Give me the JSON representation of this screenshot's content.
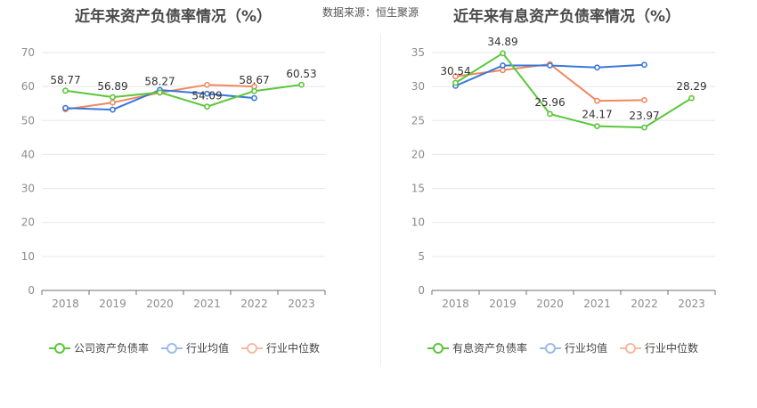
{
  "header": {
    "source_text": "数据来源：恒生聚源"
  },
  "chart_data": [
    {
      "type": "line",
      "title": "近年来资产负债率情况（%）",
      "categories": [
        "2018",
        "2019",
        "2020",
        "2021",
        "2022",
        "2023"
      ],
      "ylim": [
        0,
        70
      ],
      "yticks": [
        0,
        10,
        20,
        30,
        40,
        50,
        60,
        70
      ],
      "grid": true,
      "legend_position": "bottom",
      "series": [
        {
          "name": "公司资产负债率",
          "color": "#5ac73a",
          "values": [
            58.77,
            56.89,
            58.27,
            54.09,
            58.67,
            60.53
          ],
          "labels": [
            "58.77",
            "56.89",
            "58.27",
            "54.09",
            "58.67",
            "60.53"
          ]
        },
        {
          "name": "行业均值",
          "color": "#3a78d8",
          "values": [
            53.7,
            53.2,
            59.0,
            57.9,
            56.6,
            null
          ]
        },
        {
          "name": "行业中位数",
          "color": "#f08860",
          "values": [
            53.3,
            55.3,
            58.2,
            60.5,
            60.0,
            null
          ]
        }
      ]
    },
    {
      "type": "line",
      "title": "近年来有息资产负债率情况（%）",
      "categories": [
        "2018",
        "2019",
        "2020",
        "2021",
        "2022",
        "2023"
      ],
      "ylim": [
        0,
        35
      ],
      "yticks": [
        0,
        5,
        10,
        15,
        20,
        25,
        30,
        35
      ],
      "grid": true,
      "legend_position": "bottom",
      "series": [
        {
          "name": "有息资产负债率",
          "color": "#5ac73a",
          "values": [
            30.54,
            34.89,
            25.96,
            24.17,
            23.97,
            28.29
          ],
          "labels": [
            "30.54",
            "34.89",
            "25.96",
            "24.17",
            "23.97",
            "28.29"
          ]
        },
        {
          "name": "行业均值",
          "color": "#3a78d8",
          "values": [
            30.1,
            33.1,
            33.1,
            32.8,
            33.2,
            null
          ]
        },
        {
          "name": "行业中位数",
          "color": "#f08860",
          "values": [
            31.5,
            32.4,
            33.3,
            27.9,
            28.0,
            null
          ]
        }
      ]
    }
  ]
}
